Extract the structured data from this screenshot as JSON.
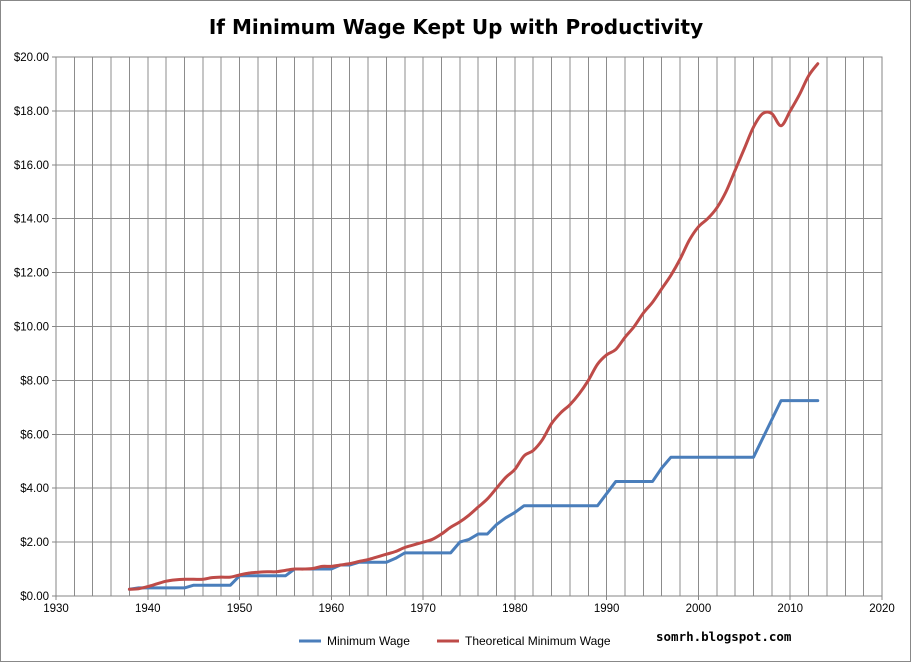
{
  "chart_data": {
    "type": "line",
    "title": "If Minimum Wage Kept Up with Productivity",
    "xlabel": "",
    "ylabel": "",
    "xlim": [
      1930,
      2020
    ],
    "ylim": [
      0,
      20
    ],
    "x_major_ticks": [
      1930,
      1940,
      1950,
      1960,
      1970,
      1980,
      1990,
      2000,
      2010,
      2020
    ],
    "y_major_ticks": [
      0,
      2,
      4,
      6,
      8,
      10,
      12,
      14,
      16,
      18,
      20
    ],
    "y_tick_labels": [
      "$0.00",
      "$2.00",
      "$4.00",
      "$6.00",
      "$8.00",
      "$10.00",
      "$12.00",
      "$14.00",
      "$16.00",
      "$18.00",
      "$20.00"
    ],
    "grid": true,
    "legend_position": "bottom",
    "credit": "somrh.blogspot.com",
    "colors": {
      "minimum_wage": "#4a7ebb",
      "theoretical": "#be4b48",
      "grid": "#8c8c8c"
    },
    "series": [
      {
        "name": "Minimum Wage",
        "color": "#4a7ebb",
        "smooth": false,
        "x": [
          1938,
          1939,
          1940,
          1941,
          1942,
          1943,
          1944,
          1945,
          1946,
          1947,
          1948,
          1949,
          1950,
          1951,
          1952,
          1953,
          1954,
          1955,
          1956,
          1957,
          1958,
          1959,
          1960,
          1961,
          1962,
          1963,
          1964,
          1965,
          1966,
          1967,
          1968,
          1969,
          1970,
          1971,
          1972,
          1973,
          1974,
          1975,
          1976,
          1977,
          1978,
          1979,
          1980,
          1981,
          1982,
          1983,
          1984,
          1985,
          1986,
          1987,
          1988,
          1989,
          1990,
          1991,
          1992,
          1993,
          1994,
          1995,
          1996,
          1997,
          1998,
          1999,
          2000,
          2001,
          2002,
          2003,
          2004,
          2005,
          2006,
          2007,
          2008,
          2009,
          2010,
          2011,
          2012,
          2013
        ],
        "values": [
          0.25,
          0.3,
          0.3,
          0.3,
          0.3,
          0.3,
          0.3,
          0.4,
          0.4,
          0.4,
          0.4,
          0.4,
          0.75,
          0.75,
          0.75,
          0.75,
          0.75,
          0.75,
          1.0,
          1.0,
          1.0,
          1.0,
          1.0,
          1.15,
          1.15,
          1.25,
          1.25,
          1.25,
          1.25,
          1.4,
          1.6,
          1.6,
          1.6,
          1.6,
          1.6,
          1.6,
          2.0,
          2.1,
          2.3,
          2.3,
          2.65,
          2.9,
          3.1,
          3.35,
          3.35,
          3.35,
          3.35,
          3.35,
          3.35,
          3.35,
          3.35,
          3.35,
          3.8,
          4.25,
          4.25,
          4.25,
          4.25,
          4.25,
          4.75,
          5.15,
          5.15,
          5.15,
          5.15,
          5.15,
          5.15,
          5.15,
          5.15,
          5.15,
          5.15,
          5.85,
          6.55,
          7.25,
          7.25,
          7.25,
          7.25,
          7.25
        ]
      },
      {
        "name": "Theoretical Minimum Wage",
        "color": "#be4b48",
        "smooth": true,
        "x": [
          1938,
          1939,
          1940,
          1941,
          1942,
          1943,
          1944,
          1945,
          1946,
          1947,
          1948,
          1949,
          1950,
          1951,
          1952,
          1953,
          1954,
          1955,
          1956,
          1957,
          1958,
          1959,
          1960,
          1961,
          1962,
          1963,
          1964,
          1965,
          1966,
          1967,
          1968,
          1969,
          1970,
          1971,
          1972,
          1973,
          1974,
          1975,
          1976,
          1977,
          1978,
          1979,
          1980,
          1981,
          1982,
          1983,
          1984,
          1985,
          1986,
          1987,
          1988,
          1989,
          1990,
          1991,
          1992,
          1993,
          1994,
          1995,
          1996,
          1997,
          1998,
          1999,
          2000,
          2001,
          2002,
          2003,
          2004,
          2005,
          2006,
          2007,
          2008,
          2009,
          2010,
          2011,
          2012,
          2013
        ],
        "values": [
          0.25,
          0.27,
          0.35,
          0.45,
          0.55,
          0.6,
          0.62,
          0.62,
          0.62,
          0.68,
          0.7,
          0.7,
          0.78,
          0.85,
          0.88,
          0.9,
          0.9,
          0.95,
          1.0,
          1.0,
          1.02,
          1.1,
          1.1,
          1.15,
          1.2,
          1.28,
          1.35,
          1.45,
          1.55,
          1.65,
          1.8,
          1.9,
          2.0,
          2.1,
          2.3,
          2.55,
          2.75,
          3.0,
          3.3,
          3.6,
          4.0,
          4.4,
          4.7,
          5.2,
          5.4,
          5.8,
          6.4,
          6.8,
          7.1,
          7.5,
          8.0,
          8.6,
          8.95,
          9.15,
          9.6,
          10.0,
          10.5,
          10.9,
          11.4,
          11.9,
          12.5,
          13.2,
          13.7,
          14.0,
          14.4,
          15.0,
          15.8,
          16.6,
          17.4,
          17.9,
          17.9,
          17.45,
          18.0,
          18.6,
          19.3,
          19.75
        ]
      }
    ]
  }
}
